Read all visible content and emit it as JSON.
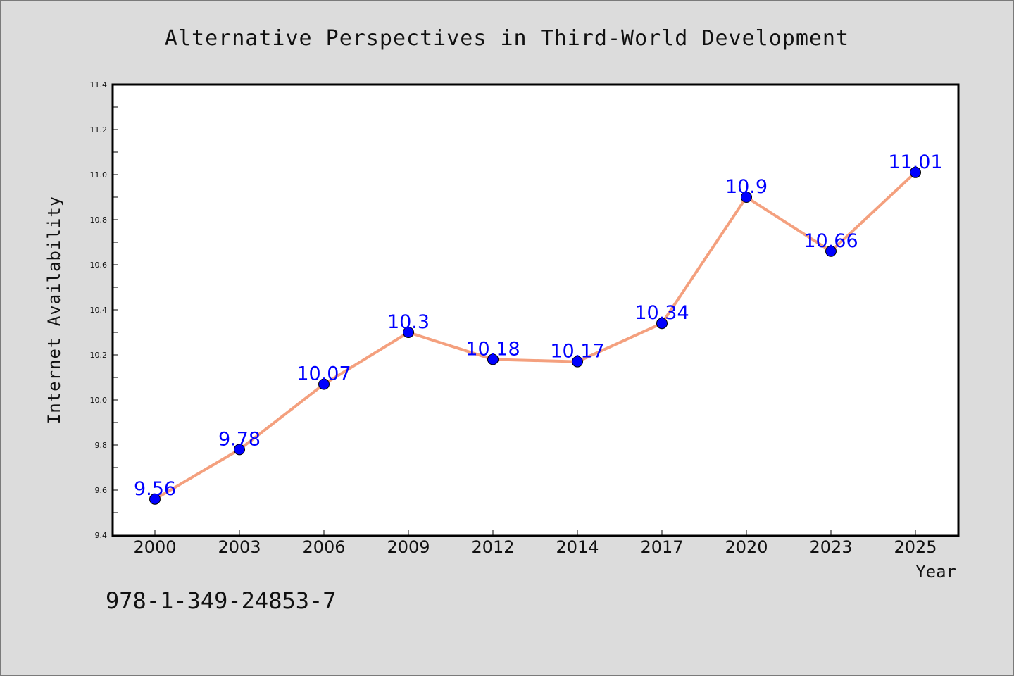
{
  "chart_data": {
    "type": "line",
    "title": "Alternative Perspectives in Third-World Development",
    "xlabel": "Year",
    "ylabel": "Internet Availability",
    "categories": [
      "2000",
      "2003",
      "2006",
      "2009",
      "2012",
      "2014",
      "2017",
      "2020",
      "2023",
      "2025"
    ],
    "values": [
      9.56,
      9.78,
      10.07,
      10.3,
      10.18,
      10.17,
      10.34,
      10.9,
      10.66,
      11.01
    ],
    "data_labels": [
      "9.56",
      "9.78",
      "10.07",
      "10.3",
      "10.18",
      "10.17",
      "10.34",
      "10.9",
      "10.66",
      "11.01"
    ],
    "ylim": [
      9.4,
      11.4
    ],
    "yticks": [
      "9.4",
      "9.6",
      "9.8",
      "10.0",
      "10.2",
      "10.4",
      "10.6",
      "10.8",
      "11.0",
      "11.2",
      "11.4"
    ],
    "grid": false,
    "line_color": "#f4a07e",
    "marker_color": "#0000ff",
    "label_color": "#0000ff",
    "background": "#dcdcdc",
    "plot_background": "#ffffff"
  },
  "footer": {
    "isbn": "978-1-349-24853-7"
  }
}
